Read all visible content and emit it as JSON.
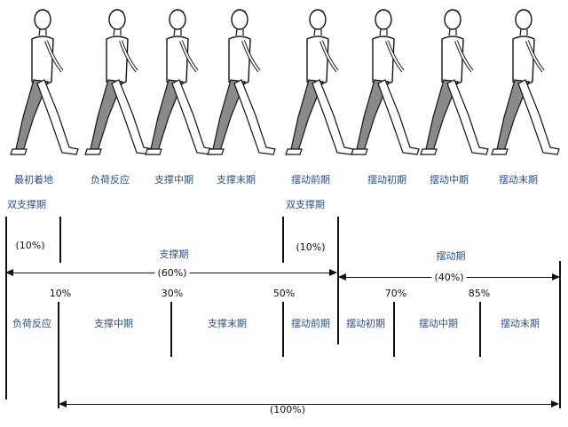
{
  "phase_labels": [
    "最初着地",
    "负荷反应",
    "支撑中期",
    "支撑末期",
    "摆动前期",
    "摆动初期",
    "摆动中期",
    "摆动末期"
  ],
  "double_support_left": "双支撑期",
  "double_support_right": "双支撑期",
  "stance_label": "支撑期",
  "swing_label": "摆动期",
  "pct_10_paren": "(10%)",
  "pct_10_paren_2": "(10%)",
  "pct_60": "(60%)",
  "pct_40": "(40%)",
  "pct_100": "(100%)",
  "marks": [
    "10%",
    "30%",
    "50%",
    "70%",
    "85%"
  ],
  "sub_phases": [
    "负荷反应",
    "支撑中期",
    "支撑末期",
    "摆动前期",
    "摆动初期",
    "摆动中期",
    "摆动末期"
  ],
  "colors": {
    "label": "#2a4f86",
    "leg_shade": "#8a8a8a"
  }
}
